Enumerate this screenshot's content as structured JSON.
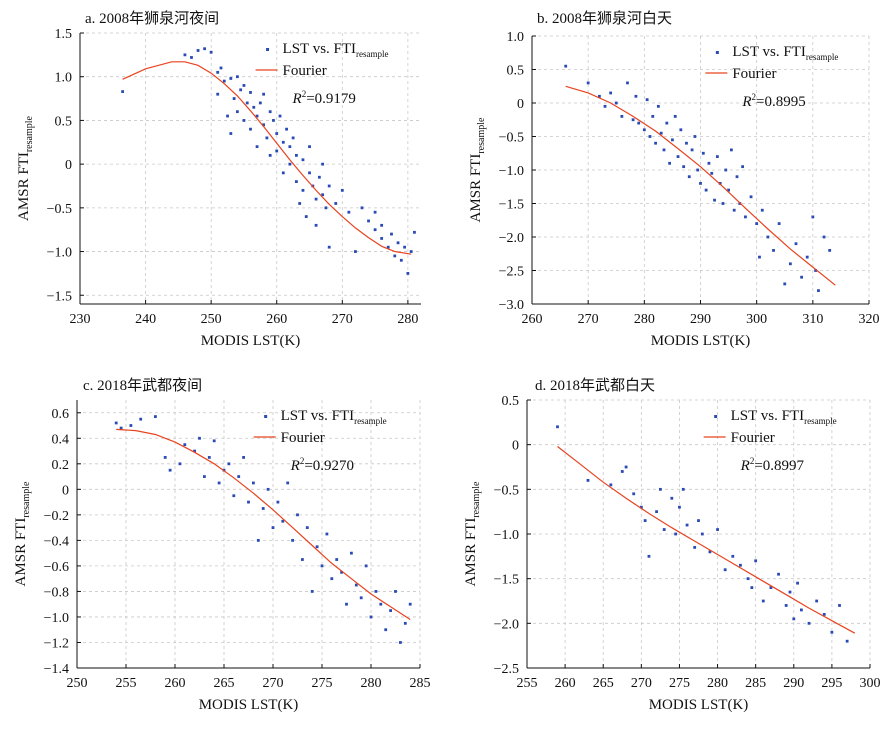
{
  "chart_data": [
    {
      "type": "scatter",
      "title": "a. 2008年狮泉河夜间",
      "xlabel": "MODIS LST(K)",
      "ylabel": "AMSR FTI",
      "ylabel_sub": "resample",
      "xlim": [
        230,
        282
      ],
      "ylim": [
        -1.6,
        1.5
      ],
      "xticks": [
        "230",
        "240",
        "250",
        "260",
        "270",
        "280"
      ],
      "yticks": [
        "1.5",
        "1.0",
        "0.5",
        "0",
        "−0.5",
        "−1.0",
        "−1.5"
      ],
      "legend": {
        "scatter_label": "LST vs. FTI",
        "scatter_label_sub": "resample",
        "fit_label": "Fourier",
        "placement": "top-right"
      },
      "r2_prefix": "R",
      "r2_sup": "2",
      "r2_text": "=0.9179",
      "series": [
        {
          "name": "LST vs. FTIresample",
          "kind": "scatter",
          "x": [
            236.5,
            246,
            247,
            248,
            249,
            250,
            251,
            251,
            251.5,
            252,
            252.5,
            253,
            253,
            253.5,
            254,
            254,
            254.5,
            255,
            255,
            255.5,
            256,
            256,
            256.5,
            257,
            257,
            257.5,
            258,
            258,
            258.5,
            259,
            259,
            259.5,
            260,
            260,
            260.5,
            261,
            261,
            261.5,
            262,
            262,
            262.5,
            263,
            263,
            263.5,
            264,
            264,
            264.5,
            265,
            265,
            265.5,
            266,
            266,
            266.5,
            267,
            267,
            267.5,
            268,
            268,
            269,
            270,
            271,
            272,
            273,
            274,
            275,
            275,
            276,
            276,
            277,
            277.5,
            278,
            278.5,
            279,
            279.5,
            280,
            280.5,
            281
          ],
          "y": [
            0.83,
            1.25,
            1.22,
            1.3,
            1.32,
            1.28,
            1.05,
            0.8,
            1.1,
            0.95,
            0.55,
            0.35,
            0.98,
            0.75,
            0.6,
            1.0,
            0.85,
            0.5,
            0.9,
            0.7,
            0.4,
            0.82,
            0.65,
            0.55,
            0.2,
            0.7,
            0.45,
            0.8,
            0.3,
            0.6,
            0.1,
            0.5,
            0.35,
            0.15,
            0.55,
            0.25,
            -0.1,
            0.4,
            0.2,
            0.0,
            0.3,
            -0.2,
            0.1,
            -0.45,
            0.05,
            -0.3,
            -0.6,
            -0.1,
            0.2,
            -0.25,
            -0.4,
            -0.7,
            -0.15,
            -0.35,
            0.0,
            -0.5,
            -0.25,
            -0.95,
            -0.45,
            -0.3,
            -0.55,
            -1.0,
            -0.5,
            -0.65,
            -0.75,
            -0.55,
            -0.85,
            -0.7,
            -0.95,
            -0.8,
            -1.05,
            -0.9,
            -1.1,
            -0.95,
            -1.25,
            -1.0,
            -0.78
          ]
        },
        {
          "name": "Fourier",
          "kind": "line",
          "x": [
            236.5,
            240,
            244,
            246,
            248,
            250,
            252,
            254,
            256,
            258,
            260,
            262,
            264,
            266,
            268,
            270,
            272,
            274,
            276,
            278,
            280.5
          ],
          "y": [
            0.97,
            1.09,
            1.17,
            1.17,
            1.13,
            1.04,
            0.92,
            0.78,
            0.61,
            0.43,
            0.24,
            0.05,
            -0.13,
            -0.3,
            -0.46,
            -0.6,
            -0.73,
            -0.84,
            -0.94,
            -1.0,
            -1.03
          ]
        }
      ]
    },
    {
      "type": "scatter",
      "title": "b. 2008年狮泉河白天",
      "xlabel": "MODIS LST(K)",
      "ylabel": "AMSR FTI",
      "ylabel_sub": "resample",
      "xlim": [
        260,
        320
      ],
      "ylim": [
        -3.0,
        1.0
      ],
      "xticks": [
        "260",
        "270",
        "280",
        "290",
        "300",
        "310",
        "320"
      ],
      "yticks": [
        "1.0",
        "0.5",
        "0",
        "−0.5",
        "−1.0",
        "−1.5",
        "−2.0",
        "−2.5",
        "−3.0"
      ],
      "legend": {
        "scatter_label": "LST vs. FTI",
        "scatter_label_sub": "resample",
        "fit_label": "Fourier",
        "placement": "top-right"
      },
      "r2_prefix": "R",
      "r2_sup": "2",
      "r2_text": "=0.8995",
      "series": [
        {
          "name": "LST vs. FTIresample",
          "kind": "scatter",
          "x": [
            266,
            270,
            272,
            273,
            274,
            275,
            276,
            277,
            278,
            278.5,
            279,
            280,
            280.5,
            281,
            281.5,
            282,
            282.5,
            283,
            283.5,
            284,
            284.5,
            285,
            285.5,
            286,
            286.5,
            287,
            287.5,
            288,
            288.5,
            289,
            289.5,
            290,
            290.5,
            291,
            291.5,
            292,
            292.5,
            293,
            293.5,
            294,
            294.5,
            295,
            295.5,
            296,
            296.5,
            297,
            297.5,
            298,
            299,
            300,
            300.5,
            301,
            302,
            303,
            304,
            305,
            306,
            307,
            308,
            309,
            310,
            310.5,
            311,
            312,
            313
          ],
          "y": [
            0.55,
            0.3,
            0.1,
            -0.05,
            0.15,
            0.0,
            -0.2,
            0.3,
            -0.25,
            0.1,
            -0.3,
            -0.4,
            0.05,
            -0.5,
            -0.2,
            -0.6,
            -0.05,
            -0.45,
            -0.7,
            -0.3,
            -0.9,
            -0.55,
            -0.2,
            -0.8,
            -0.4,
            -0.95,
            -0.6,
            -1.1,
            -0.7,
            -0.5,
            -1.0,
            -1.2,
            -0.75,
            -1.3,
            -0.9,
            -1.05,
            -1.45,
            -0.8,
            -1.2,
            -1.5,
            -1.0,
            -1.3,
            -0.7,
            -1.6,
            -1.1,
            -1.5,
            -0.95,
            -1.7,
            -1.4,
            -1.8,
            -2.3,
            -1.6,
            -2.0,
            -2.2,
            -1.8,
            -2.7,
            -2.4,
            -2.1,
            -2.6,
            -2.3,
            -1.7,
            -2.5,
            -2.8,
            -2.0,
            -2.2
          ]
        },
        {
          "name": "Fourier",
          "kind": "line",
          "x": [
            266,
            270,
            274,
            278,
            282,
            286,
            290,
            294,
            298,
            302,
            306,
            310,
            314
          ],
          "y": [
            0.25,
            0.15,
            0.0,
            -0.2,
            -0.42,
            -0.68,
            -0.95,
            -1.25,
            -1.57,
            -1.88,
            -2.18,
            -2.45,
            -2.72
          ]
        }
      ]
    },
    {
      "type": "scatter",
      "title": "c. 2018年武都夜间",
      "xlabel": "MODIS LST(K)",
      "ylabel": "AMSR FTI",
      "ylabel_sub": "resample",
      "xlim": [
        250,
        285
      ],
      "ylim": [
        -1.4,
        0.7
      ],
      "xticks": [
        "250",
        "255",
        "260",
        "265",
        "270",
        "275",
        "280",
        "285"
      ],
      "yticks": [
        "0.6",
        "0.4",
        "0.2",
        "0",
        "−0.2",
        "−0.4",
        "−0.6",
        "−0.8",
        "−1.0",
        "−1.2",
        "−1.4"
      ],
      "legend": {
        "scatter_label": "LST vs. FTI",
        "scatter_label_sub": "resample",
        "fit_label": "Fourier",
        "placement": "top-right"
      },
      "r2_prefix": "R",
      "r2_sup": "2",
      "r2_text": "=0.9270",
      "series": [
        {
          "name": "LST vs. FTIresample",
          "kind": "scatter",
          "x": [
            254,
            254.5,
            255.5,
            256.5,
            258,
            259,
            259.5,
            260.5,
            261,
            262,
            262.5,
            263,
            263.5,
            264,
            264.5,
            265,
            265.5,
            266,
            266.5,
            267,
            267.5,
            268,
            268.5,
            269,
            269.5,
            270,
            270.5,
            271,
            271.5,
            272,
            272.5,
            273,
            273.5,
            274,
            274.5,
            275,
            275.5,
            276,
            276.5,
            277,
            277.5,
            278,
            278.5,
            279,
            279.5,
            280,
            280.5,
            281,
            281.5,
            282,
            282.5,
            283,
            283.5,
            284
          ],
          "y": [
            0.52,
            0.48,
            0.5,
            0.55,
            0.57,
            0.25,
            0.15,
            0.2,
            0.35,
            0.3,
            0.4,
            0.1,
            0.25,
            0.38,
            0.05,
            0.15,
            0.2,
            -0.05,
            0.1,
            0.25,
            -0.1,
            0.05,
            -0.4,
            -0.15,
            0.0,
            -0.3,
            -0.1,
            -0.25,
            0.05,
            -0.4,
            -0.2,
            -0.55,
            -0.3,
            -0.8,
            -0.45,
            -0.6,
            -0.35,
            -0.7,
            -0.55,
            -0.65,
            -0.9,
            -0.5,
            -0.75,
            -0.85,
            -0.6,
            -1.0,
            -0.8,
            -0.9,
            -1.1,
            -0.95,
            -0.8,
            -1.2,
            -1.05,
            -0.9
          ]
        },
        {
          "name": "Fourier",
          "kind": "line",
          "x": [
            254,
            256,
            258,
            260,
            262,
            264,
            266,
            268,
            270,
            272,
            274,
            276,
            278,
            280,
            282,
            284
          ],
          "y": [
            0.47,
            0.46,
            0.43,
            0.37,
            0.29,
            0.2,
            0.09,
            -0.03,
            -0.16,
            -0.3,
            -0.44,
            -0.58,
            -0.7,
            -0.82,
            -0.92,
            -1.02
          ]
        }
      ]
    },
    {
      "type": "scatter",
      "title": "d. 2018年武都白天",
      "xlabel": "MODIS LST(K)",
      "ylabel": "AMSR FTI",
      "ylabel_sub": "resample",
      "xlim": [
        255,
        300
      ],
      "ylim": [
        -2.5,
        0.5
      ],
      "xticks": [
        "255",
        "260",
        "265",
        "270",
        "275",
        "280",
        "285",
        "290",
        "295",
        "300"
      ],
      "yticks": [
        "0.5",
        "0",
        "−0.5",
        "−1.0",
        "−1.5",
        "−2.0",
        "−2.5"
      ],
      "legend": {
        "scatter_label": "LST vs. FTI",
        "scatter_label_sub": "resample",
        "fit_label": "Fourier",
        "placement": "top-right"
      },
      "r2_prefix": "R",
      "r2_sup": "2",
      "r2_text": "=0.8997",
      "series": [
        {
          "name": "LST vs. FTIresample",
          "kind": "scatter",
          "x": [
            259,
            263,
            266,
            267.5,
            268,
            269,
            270,
            270.5,
            271,
            272,
            272.5,
            273,
            274,
            274.5,
            275,
            275.5,
            276,
            277,
            277.5,
            278,
            279,
            280,
            281,
            282,
            283,
            284,
            284.5,
            285,
            286,
            287,
            288,
            289,
            289.5,
            290,
            290.5,
            291,
            292,
            293,
            294,
            295,
            296,
            297
          ],
          "y": [
            0.2,
            -0.4,
            -0.45,
            -0.3,
            -0.25,
            -0.55,
            -0.7,
            -0.85,
            -1.25,
            -0.75,
            -0.5,
            -0.95,
            -0.6,
            -1.0,
            -0.7,
            -0.5,
            -0.9,
            -1.15,
            -0.85,
            -1.0,
            -1.2,
            -0.95,
            -1.4,
            -1.25,
            -1.35,
            -1.5,
            -1.6,
            -1.3,
            -1.75,
            -1.6,
            -1.45,
            -1.8,
            -1.65,
            -1.95,
            -1.55,
            -1.85,
            -2.0,
            -1.75,
            -1.9,
            -2.1,
            -1.8,
            -2.2
          ]
        },
        {
          "name": "Fourier",
          "kind": "line",
          "x": [
            259,
            262,
            265,
            268,
            271,
            274,
            277,
            280,
            283,
            286,
            289,
            292,
            295,
            298
          ],
          "y": [
            -0.02,
            -0.22,
            -0.42,
            -0.6,
            -0.77,
            -0.93,
            -1.08,
            -1.23,
            -1.38,
            -1.53,
            -1.68,
            -1.83,
            -1.97,
            -2.11
          ]
        }
      ]
    }
  ],
  "colors": {
    "scatter": "#2a4bb5",
    "fit": "#e8431f",
    "axis": "#111111",
    "grid": "#c8c8c8"
  }
}
